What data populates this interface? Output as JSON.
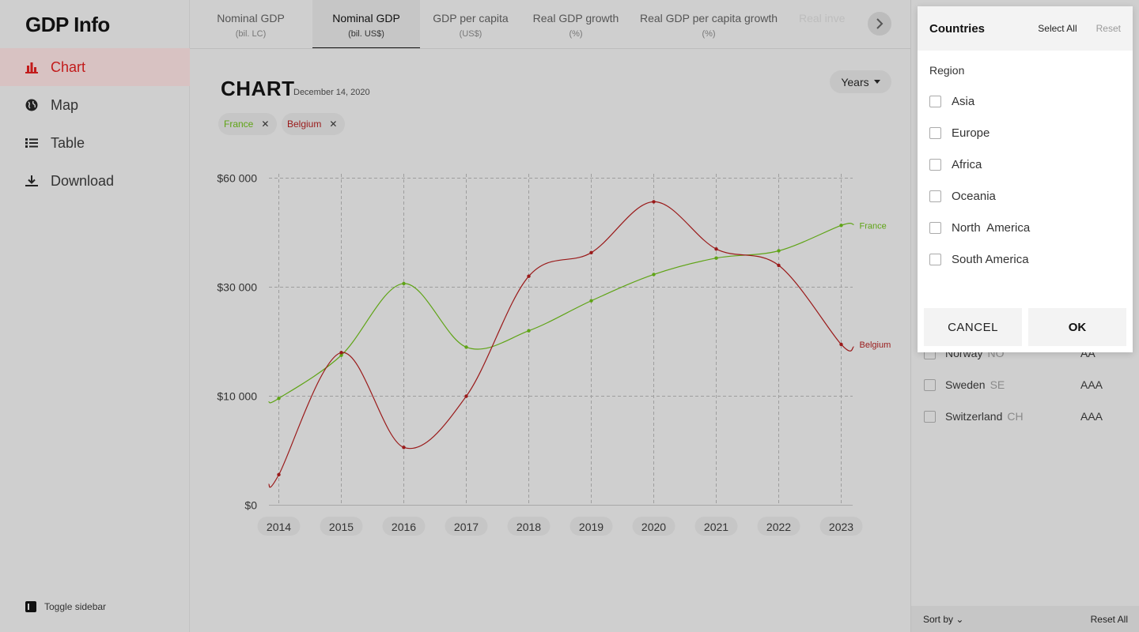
{
  "app": {
    "title": "GDP Info"
  },
  "sidebar": {
    "items": [
      {
        "label": "Chart",
        "icon": "bar-chart-icon",
        "active": true
      },
      {
        "label": "Map",
        "icon": "globe-icon",
        "active": false
      },
      {
        "label": "Table",
        "icon": "list-icon",
        "active": false
      },
      {
        "label": "Download",
        "icon": "download-icon",
        "active": false
      }
    ],
    "toggle_label": "Toggle sidebar"
  },
  "tabs": [
    {
      "label": "Nominal GDP",
      "sub": "(bil. LC)"
    },
    {
      "label": "Nominal GDP",
      "sub": "(bil. US$)"
    },
    {
      "label": "GDP per capita",
      "sub": "(US$)"
    },
    {
      "label": "Real GDP growth",
      "sub": "(%)"
    },
    {
      "label": "Real GDP per capita growth",
      "sub": "(%)"
    },
    {
      "label": "Real inve",
      "sub": ""
    }
  ],
  "main": {
    "title": "CHART",
    "date": "December 14, 2020",
    "years_button": "Years",
    "chips": [
      {
        "label": "France",
        "color": "#5fa416"
      },
      {
        "label": "Belgium",
        "color": "#9a1a1a"
      }
    ]
  },
  "chart_data": {
    "type": "line",
    "x": [
      2014,
      2015,
      2016,
      2017,
      2018,
      2019,
      2020,
      2021,
      2022,
      2023
    ],
    "x_tick_labels": [
      "2014",
      "2015",
      "2016",
      "2017",
      "2018",
      "2019",
      "2020",
      "2021",
      "2022",
      "2023"
    ],
    "y_tick_labels": [
      "$0",
      "$10 000",
      "$30 000",
      "$60 000"
    ],
    "y_tick_values": [
      0,
      10000,
      30000,
      60000
    ],
    "y_scale": "piecewise",
    "grid": true,
    "series": [
      {
        "name": "France",
        "color": "#5fa416",
        "values": [
          9800,
          17500,
          31000,
          19000,
          22000,
          27500,
          33500,
          38000,
          40000,
          47000
        ]
      },
      {
        "name": "Belgium",
        "color": "#9a1a1a",
        "values": [
          2800,
          18000,
          5300,
          10000,
          33000,
          39500,
          53500,
          40500,
          36000,
          19500
        ]
      }
    ]
  },
  "countries_panel": {
    "rows": [
      {
        "name": "Norway",
        "code": "NO",
        "rating": "AA"
      },
      {
        "name": "Sweden",
        "code": "SE",
        "rating": "AAA"
      },
      {
        "name": "Switzerland",
        "code": "CH",
        "rating": "AAA"
      }
    ],
    "sort_label": "Sort by",
    "reset_all": "Reset All"
  },
  "popup": {
    "title": "Countries",
    "select_all": "Select All",
    "reset": "Reset",
    "region_label": "Region",
    "regions": [
      "Asia",
      "Europe",
      "Africa",
      "Oceania",
      "North  America",
      "South America"
    ],
    "cancel": "CANCEL",
    "ok": "OK"
  }
}
